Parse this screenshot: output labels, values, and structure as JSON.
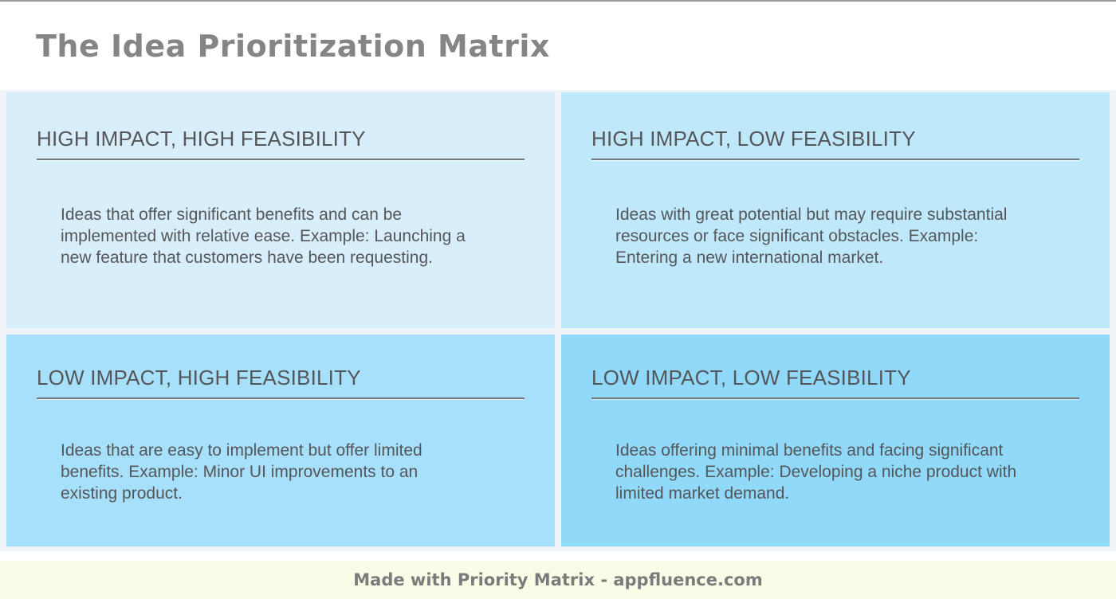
{
  "page": {
    "title": "The Idea Prioritization Matrix"
  },
  "quadrants": [
    {
      "id": "high-impact-high-feasibility",
      "title": "HIGH IMPACT, HIGH FEASIBILITY",
      "description": "Ideas that offer significant benefits and can be implemented with relative ease. Example: Launching a new feature that customers have been requesting.",
      "bg": "#d9eefb"
    },
    {
      "id": "high-impact-low-feasibility",
      "title": "HIGH IMPACT, LOW FEASIBILITY",
      "description": "Ideas with great potential but may require substantial resources or face significant obstacles. Example: Entering a new international market.",
      "bg": "#c0e8fb"
    },
    {
      "id": "low-impact-high-feasibility",
      "title": "LOW IMPACT, HIGH FEASIBILITY",
      "description": "Ideas that are easy to implement but offer limited benefits. Example: Minor UI improvements to an existing product.",
      "bg": "#a7e0fa"
    },
    {
      "id": "low-impact-low-feasibility",
      "title": "LOW IMPACT, LOW FEASIBILITY",
      "description": "Ideas offering minimal benefits and facing significant challenges. Example: Developing a niche product with limited market demand.",
      "bg": "#90d9f8"
    }
  ],
  "footer": {
    "text": "Made with Priority Matrix - appfluence.com",
    "bg": "#fbfce7"
  },
  "colors": {
    "page_bg": "#ffffff",
    "top_border": "#9a9a9a",
    "grid_gap_bg": "#eef3f7",
    "title_color": "#858585",
    "heading_color": "#55565a",
    "body_color": "#55565a",
    "rule_color": "#74757a",
    "footer_bg": "#fbfce7",
    "footer_text_color": "#7b7b7b"
  }
}
